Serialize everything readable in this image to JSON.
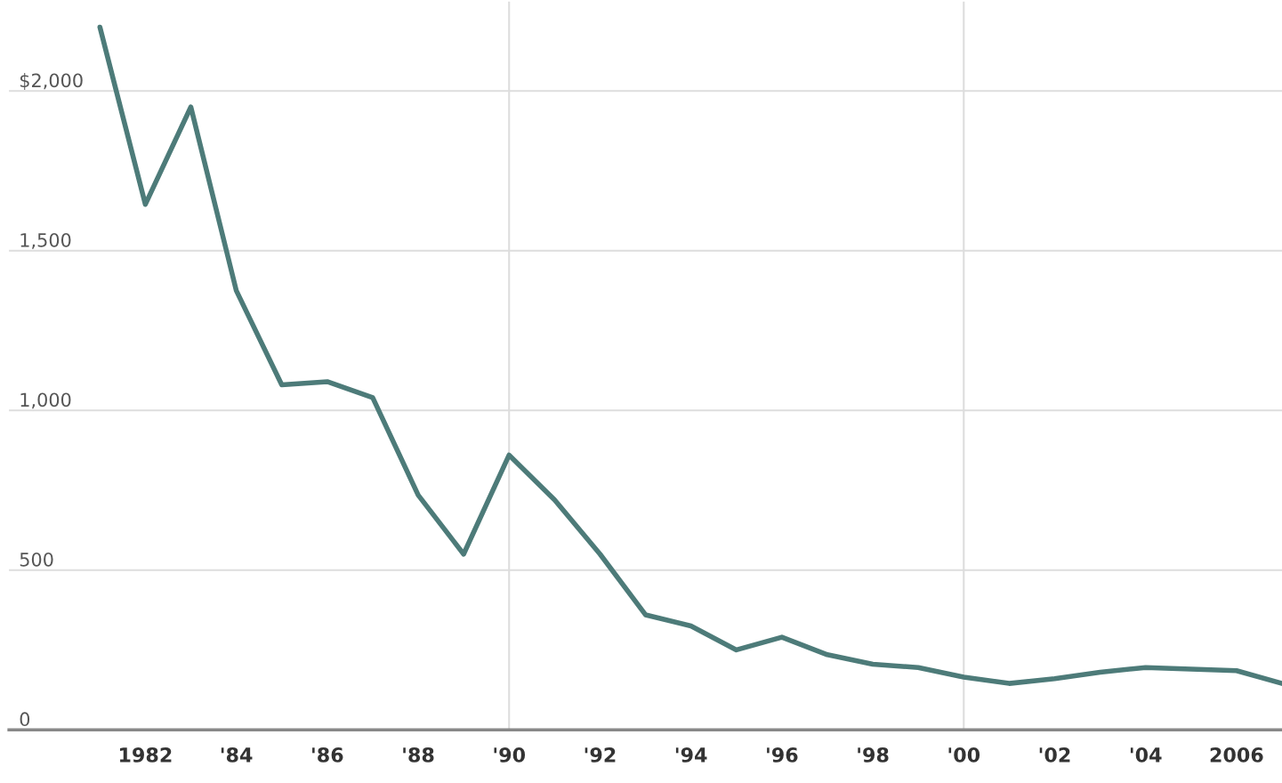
{
  "chart_data": {
    "type": "line",
    "x": [
      1981,
      1982,
      1983,
      1984,
      1985,
      1986,
      1987,
      1988,
      1989,
      1990,
      1991,
      1992,
      1993,
      1994,
      1995,
      1996,
      1997,
      1998,
      1999,
      2000,
      2001,
      2002,
      2003,
      2004,
      2005,
      2006,
      2007
    ],
    "series": [
      {
        "color": "#4d7b79",
        "values": [
          2200,
          1645,
          1950,
          1375,
          1080,
          1090,
          1040,
          735,
          550,
          860,
          720,
          550,
          360,
          325,
          250,
          290,
          235,
          205,
          195,
          165,
          145,
          160,
          180,
          195,
          190,
          185,
          145
        ]
      }
    ],
    "xlim": [
      1979,
      2007
    ],
    "xticks": [
      {
        "value": 1982,
        "label": "1982"
      },
      {
        "value": 1984,
        "label": "'84"
      },
      {
        "value": 1986,
        "label": "'86"
      },
      {
        "value": 1988,
        "label": "'88"
      },
      {
        "value": 1990,
        "label": "'90"
      },
      {
        "value": 1992,
        "label": "'92"
      },
      {
        "value": 1994,
        "label": "'94"
      },
      {
        "value": 1996,
        "label": "'96"
      },
      {
        "value": 1998,
        "label": "'98"
      },
      {
        "value": 2000,
        "label": "'00"
      },
      {
        "value": 2002,
        "label": "'02"
      },
      {
        "value": 2004,
        "label": "'04"
      },
      {
        "value": 2006,
        "label": "2006"
      }
    ],
    "ylim": [
      0,
      2280
    ],
    "yticks": [
      0,
      {
        "value": 500,
        "label": "500"
      },
      {
        "value": 1000,
        "label": "1,000"
      },
      {
        "value": 1500,
        "label": "1,500"
      },
      {
        "value": 2000,
        "label": "$2,000"
      }
    ],
    "grid": "y",
    "ref_lines": [
      {
        "axis": "x",
        "value": 1990,
        "color": "#dddddd"
      },
      {
        "axis": "x",
        "value": 2000,
        "color": "#dddddd"
      }
    ],
    "legend": false
  }
}
